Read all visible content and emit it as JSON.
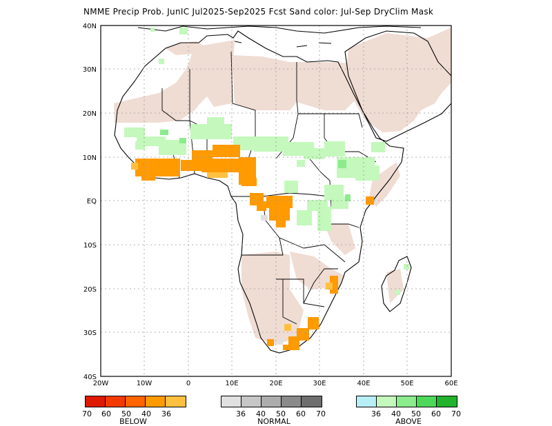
{
  "title": "NMME Precip Prob. JunIC  Jul2025-Sep2025 Fcst  Sand color: Jul-Sep DryClim Mask",
  "map": {
    "lat_labels": [
      "40N",
      "30N",
      "20N",
      "10N",
      "EQ",
      "10S",
      "20S",
      "30S",
      "40S"
    ],
    "lon_labels": [
      "20W",
      "10W",
      "0",
      "10E",
      "20E",
      "30E",
      "40E",
      "50E",
      "60E"
    ],
    "colors": {
      "land_outline": "#000000",
      "sand_mask": "#efdcd3",
      "grid": "#9a9a9a"
    }
  },
  "legend": {
    "below": {
      "label": "BELOW",
      "colors": [
        "#dd1a00",
        "#f23a00",
        "#ff6400",
        "#ff9a00",
        "#ffc040"
      ],
      "ticks": [
        "70",
        "60",
        "50",
        "40",
        "36"
      ]
    },
    "normal": {
      "label": "NORMAL",
      "colors": [
        "#e0e0e0",
        "#c6c6c6",
        "#acacac",
        "#8a8a8a",
        "#6e6e6e"
      ],
      "ticks": [
        "36",
        "40",
        "50",
        "60",
        "70"
      ]
    },
    "above": {
      "label": "ABOVE",
      "colors": [
        "#b8eef6",
        "#c4f8bc",
        "#8ceb8c",
        "#4ed85a",
        "#22b22b"
      ],
      "ticks": [
        "36",
        "40",
        "50",
        "60",
        "70"
      ]
    }
  }
}
